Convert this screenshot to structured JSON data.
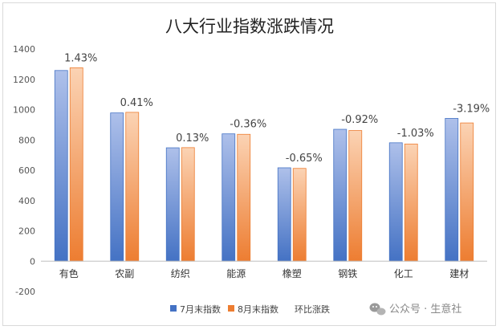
{
  "chart_data": {
    "type": "bar",
    "title": "八大行业指数涨跌情况",
    "categories": [
      "有色",
      "农副",
      "纺织",
      "能源",
      "橡塑",
      "钢铁",
      "化工",
      "建材"
    ],
    "series": [
      {
        "name": "7月末指数",
        "values": [
          1258,
          978,
          748,
          840,
          616,
          870,
          781,
          942
        ]
      },
      {
        "name": "8月末指数",
        "values": [
          1276,
          982,
          749,
          837,
          612,
          862,
          773,
          912
        ]
      },
      {
        "name": "环比涨跌",
        "values": [
          1.43,
          0.41,
          0.13,
          -0.36,
          -0.65,
          -0.92,
          -1.03,
          -3.19
        ]
      }
    ],
    "data_labels": [
      "1.43%",
      "0.41%",
      "0.13%",
      "-0.36%",
      "-0.65%",
      "-0.92%",
      "-1.03%",
      "-3.19%"
    ],
    "ylim": [
      -200,
      1400
    ],
    "yticks": [
      "-200",
      "0",
      "200",
      "400",
      "600",
      "800",
      "1000",
      "1200",
      "1400"
    ],
    "grid": false,
    "legend_position": "bottom",
    "colors": {
      "july_top": "#aec0ea",
      "july_bottom": "#4472c4",
      "aug_top": "#fbd3b4",
      "aug_bottom": "#ed7d31"
    }
  },
  "watermark": {
    "text": "公众号 · 生意社",
    "icon": "wechat-icon"
  }
}
